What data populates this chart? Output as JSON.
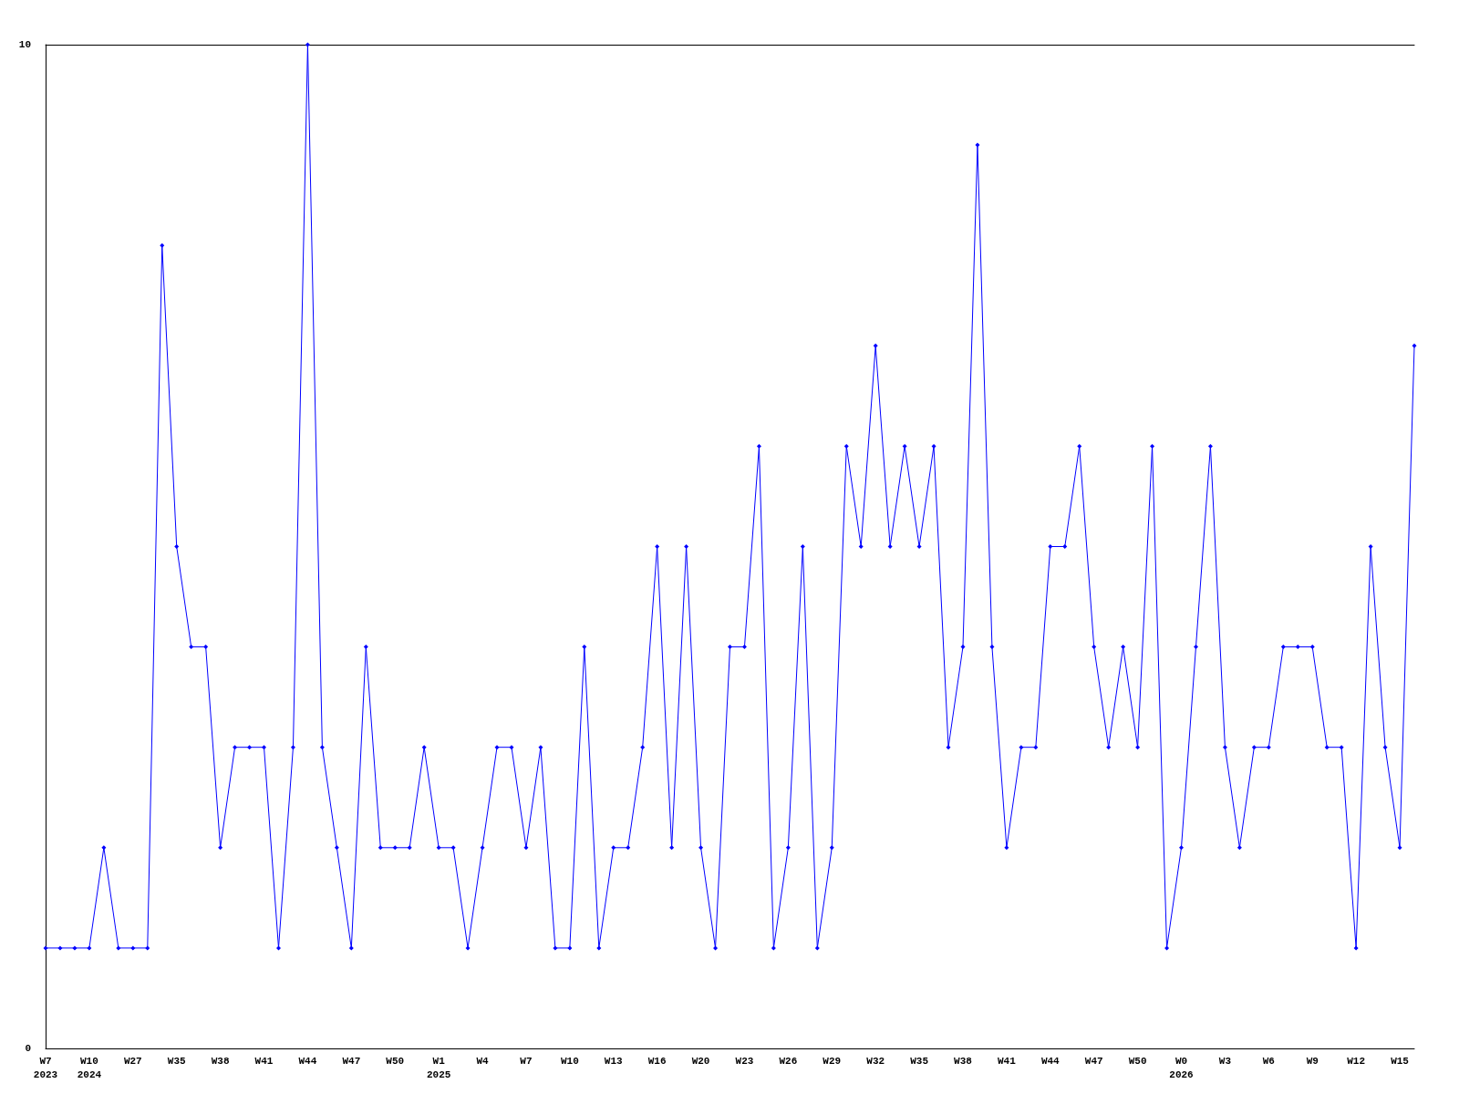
{
  "chart_data": {
    "type": "line",
    "categories": [
      "W7\n2023",
      null,
      null,
      "W10\n2024",
      null,
      null,
      "W27",
      null,
      null,
      "W35",
      null,
      null,
      "W38",
      null,
      null,
      "W41",
      null,
      null,
      "W44",
      null,
      null,
      "W47",
      null,
      null,
      "W50",
      null,
      null,
      "W1\n2025",
      null,
      null,
      "W4",
      null,
      null,
      "W7",
      null,
      null,
      "W10",
      null,
      null,
      "W13",
      null,
      null,
      "W16",
      null,
      null,
      "W20",
      null,
      null,
      "W23",
      null,
      null,
      "W26",
      null,
      null,
      "W29",
      null,
      null,
      "W32",
      null,
      null,
      "W35",
      null,
      null,
      "W38",
      null,
      null,
      "W41",
      null,
      null,
      "W44",
      null,
      null,
      "W47",
      null,
      null,
      "W50",
      null,
      null,
      "W0\n2026",
      null,
      null,
      "W3",
      null,
      null,
      "W6",
      null,
      null,
      "W9",
      null,
      null,
      "W12",
      null,
      null,
      "W15",
      null
    ],
    "series": [
      {
        "color": "#0000ff",
        "values": [
          1,
          1,
          1,
          1,
          2,
          1,
          1,
          1,
          8,
          5,
          4,
          4,
          2,
          3,
          3,
          3,
          1,
          3,
          10,
          3,
          2,
          1,
          4,
          2,
          2,
          2,
          3,
          2,
          2,
          1,
          2,
          3,
          3,
          2,
          3,
          1,
          1,
          4,
          1,
          2,
          2,
          3,
          5,
          2,
          5,
          2,
          1,
          4,
          4,
          6,
          1,
          2,
          5,
          1,
          2,
          6,
          5,
          7,
          5,
          6,
          5,
          6,
          3,
          4,
          9,
          4,
          2,
          3,
          3,
          5,
          5,
          6,
          4,
          3,
          4,
          3,
          6,
          1,
          2,
          4,
          6,
          3,
          2,
          3,
          3,
          4,
          4,
          4,
          3,
          3,
          1,
          5,
          3,
          2,
          7
        ]
      }
    ],
    "ylim": [
      0,
      10
    ],
    "yticks": [
      0,
      10
    ],
    "grid": false,
    "marker": "diamond",
    "line_style": "solid"
  }
}
